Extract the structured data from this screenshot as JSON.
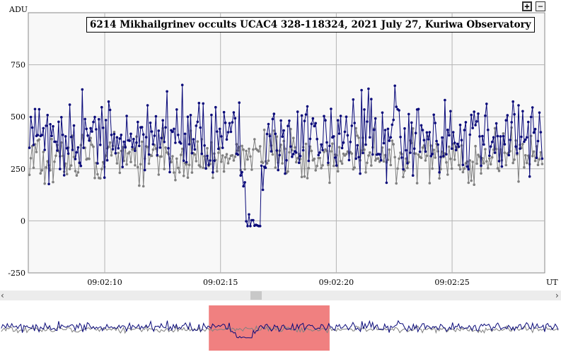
{
  "toolbar": {
    "zoom_in_label": "+",
    "zoom_out_label": "−"
  },
  "scrollbar": {
    "left_arrow": "‹",
    "right_arrow": "›"
  },
  "colors": {
    "series_1": "#0a0a7a",
    "series_2": "#808080",
    "grid": "#b4b4b4",
    "plot_background": "#f8f8f8",
    "navigator_highlight": "#f08080",
    "scroll_track": "#e8e8e8",
    "scroll_thumb": "#c8c8c8"
  },
  "chart_data": {
    "type": "line",
    "title": "6214 Mikhailgrinev occults UCAC4 328-118324, 2021 July 27, Kuriwa Observatory",
    "ylabel": "ADU",
    "xlabel": "UT",
    "ylim": [
      -250,
      1000
    ],
    "yticks": [
      -250,
      0,
      250,
      500,
      750
    ],
    "xlim": [
      6.7,
      29.0
    ],
    "xticks": [
      10,
      15,
      20,
      25
    ],
    "xtick_labels": [
      "09:02:10",
      "09:02:15",
      "09:02:20",
      "09:02:25"
    ],
    "x_unit": "seconds after 09:02:00 UT",
    "grid": true,
    "navigator": {
      "highlight_range_x": [
        15.0,
        19.8
      ]
    },
    "series": []
  }
}
